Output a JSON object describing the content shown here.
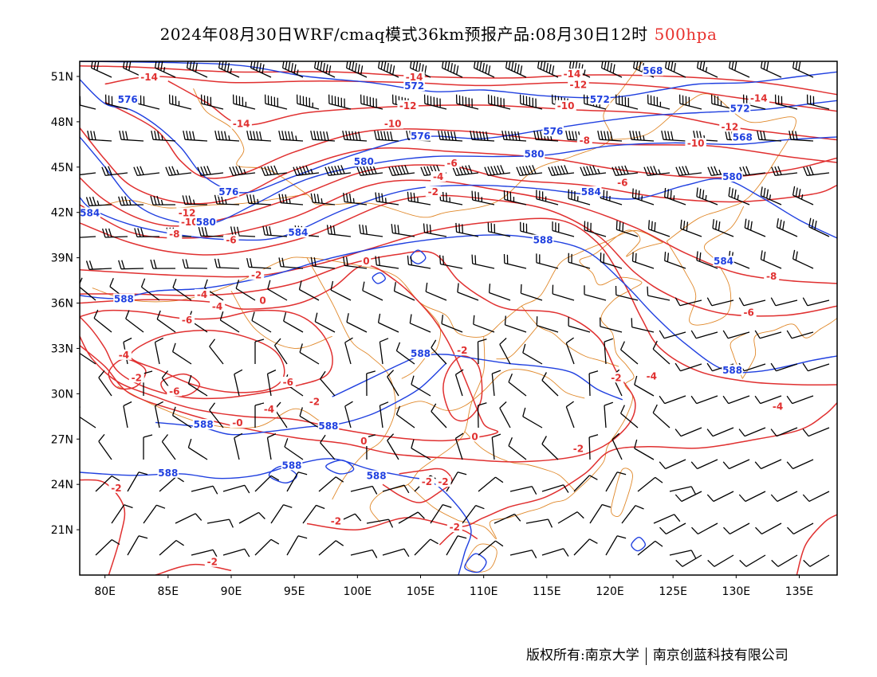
{
  "title": {
    "main": "2024年08月30日WRF/cmaq模式36km预报产品:08月30日12时",
    "level": "500hpa"
  },
  "axes": {
    "lat_labels": [
      "51N",
      "48N",
      "45N",
      "42N",
      "39N",
      "36N",
      "33N",
      "30N",
      "27N",
      "24N",
      "21N"
    ],
    "lon_labels": [
      "80E",
      "85E",
      "90E",
      "95E",
      "100E",
      "105E",
      "110E",
      "115E",
      "120E",
      "125E",
      "130E",
      "135E"
    ]
  },
  "colors": {
    "temperature": "#e03030",
    "height": "#2040e0",
    "border": "#e0882a",
    "wind": "#000000"
  },
  "contour_labels": {
    "temperature": [
      {
        "text": "-14",
        "lon": 83.5,
        "lat": 50.8
      },
      {
        "text": "-14",
        "lon": 104.5,
        "lat": 50.8
      },
      {
        "text": "-14",
        "lon": 117.0,
        "lat": 51.0
      },
      {
        "text": "-12",
        "lon": 117.5,
        "lat": 50.3
      },
      {
        "text": "-14",
        "lon": 131.8,
        "lat": 49.4
      },
      {
        "text": "-12",
        "lon": 104.0,
        "lat": 48.9
      },
      {
        "text": "-10",
        "lon": 116.5,
        "lat": 48.9
      },
      {
        "text": "-14",
        "lon": 90.8,
        "lat": 47.7
      },
      {
        "text": "-10",
        "lon": 102.8,
        "lat": 47.7
      },
      {
        "text": "-12",
        "lon": 129.5,
        "lat": 47.5
      },
      {
        "text": "-8",
        "lon": 118.0,
        "lat": 46.6
      },
      {
        "text": "-10",
        "lon": 126.8,
        "lat": 46.4
      },
      {
        "text": "-6",
        "lon": 107.5,
        "lat": 45.1
      },
      {
        "text": "-4",
        "lon": 106.4,
        "lat": 44.2
      },
      {
        "text": "-6",
        "lon": 121.0,
        "lat": 43.8
      },
      {
        "text": "-2",
        "lon": 106.0,
        "lat": 43.2
      },
      {
        "text": "-12",
        "lon": 86.5,
        "lat": 41.8
      },
      {
        "text": "-10",
        "lon": 86.7,
        "lat": 41.2
      },
      {
        "text": "-8",
        "lon": 85.5,
        "lat": 40.4
      },
      {
        "text": "-6",
        "lon": 90.0,
        "lat": 40.0
      },
      {
        "text": "0",
        "lon": 100.7,
        "lat": 38.6
      },
      {
        "text": "-2",
        "lon": 92.0,
        "lat": 37.7
      },
      {
        "text": "-8",
        "lon": 132.8,
        "lat": 37.6
      },
      {
        "text": "-4",
        "lon": 87.7,
        "lat": 36.4
      },
      {
        "text": "0",
        "lon": 92.5,
        "lat": 36.0
      },
      {
        "text": "-4",
        "lon": 88.9,
        "lat": 35.6
      },
      {
        "text": "-6",
        "lon": 131.0,
        "lat": 35.2
      },
      {
        "text": "-6",
        "lon": 86.5,
        "lat": 34.7
      },
      {
        "text": "-4",
        "lon": 81.5,
        "lat": 32.4
      },
      {
        "text": "-2",
        "lon": 108.3,
        "lat": 32.7
      },
      {
        "text": "-2",
        "lon": 82.5,
        "lat": 30.9
      },
      {
        "text": "-6",
        "lon": 94.5,
        "lat": 30.6
      },
      {
        "text": "-6",
        "lon": 85.5,
        "lat": 30.0
      },
      {
        "text": "-4",
        "lon": 123.3,
        "lat": 31.0
      },
      {
        "text": "-2",
        "lon": 120.5,
        "lat": 30.9
      },
      {
        "text": "-2",
        "lon": 96.6,
        "lat": 29.3
      },
      {
        "text": "-4",
        "lon": 93.0,
        "lat": 28.8
      },
      {
        "text": "-4",
        "lon": 133.3,
        "lat": 29.0
      },
      {
        "text": "-0",
        "lon": 90.5,
        "lat": 27.9
      },
      {
        "text": "0",
        "lon": 100.5,
        "lat": 26.7
      },
      {
        "text": "0",
        "lon": 109.3,
        "lat": 27.0
      },
      {
        "text": "-2",
        "lon": 117.5,
        "lat": 26.2
      },
      {
        "text": "-2",
        "lon": 105.5,
        "lat": 24.0
      },
      {
        "text": "-2",
        "lon": 106.8,
        "lat": 24.0
      },
      {
        "text": "-2",
        "lon": 80.9,
        "lat": 23.6
      },
      {
        "text": "-2",
        "lon": 98.3,
        "lat": 21.4
      },
      {
        "text": "-2",
        "lon": 107.7,
        "lat": 21.0
      },
      {
        "text": "-2",
        "lon": 88.5,
        "lat": 18.7
      }
    ],
    "height": [
      {
        "text": "572",
        "lon": 92.0,
        "lat": 51.7
      },
      {
        "text": "568",
        "lon": 123.4,
        "lat": 51.2
      },
      {
        "text": "572",
        "lon": 104.5,
        "lat": 50.2
      },
      {
        "text": "576",
        "lon": 81.8,
        "lat": 49.3
      },
      {
        "text": "572",
        "lon": 119.2,
        "lat": 49.3
      },
      {
        "text": "572",
        "lon": 130.3,
        "lat": 48.7
      },
      {
        "text": "576",
        "lon": 105.0,
        "lat": 46.9
      },
      {
        "text": "576",
        "lon": 115.5,
        "lat": 47.2
      },
      {
        "text": "568",
        "lon": 130.5,
        "lat": 46.8
      },
      {
        "text": "580",
        "lon": 114.0,
        "lat": 45.7
      },
      {
        "text": "580",
        "lon": 100.5,
        "lat": 45.2
      },
      {
        "text": "580",
        "lon": 129.7,
        "lat": 44.2
      },
      {
        "text": "576",
        "lon": 89.8,
        "lat": 43.2
      },
      {
        "text": "584",
        "lon": 118.5,
        "lat": 43.2
      },
      {
        "text": "584",
        "lon": 78.8,
        "lat": 41.8
      },
      {
        "text": "580",
        "lon": 88.0,
        "lat": 41.2
      },
      {
        "text": "584",
        "lon": 95.3,
        "lat": 40.5
      },
      {
        "text": "588",
        "lon": 114.7,
        "lat": 40.0
      },
      {
        "text": "584",
        "lon": 129.0,
        "lat": 38.6
      },
      {
        "text": "588",
        "lon": 81.5,
        "lat": 36.1
      },
      {
        "text": "588",
        "lon": 105.0,
        "lat": 32.5
      },
      {
        "text": "588",
        "lon": 129.7,
        "lat": 31.4
      },
      {
        "text": "588",
        "lon": 87.8,
        "lat": 27.8
      },
      {
        "text": "588",
        "lon": 97.7,
        "lat": 27.7
      },
      {
        "text": "588",
        "lon": 94.8,
        "lat": 25.1
      },
      {
        "text": "588",
        "lon": 85.0,
        "lat": 24.6
      },
      {
        "text": "588",
        "lon": 101.5,
        "lat": 24.4
      }
    ]
  },
  "copyright": {
    "left": "版权所有:南京大学",
    "right": "南京创蓝科技有限公司"
  }
}
